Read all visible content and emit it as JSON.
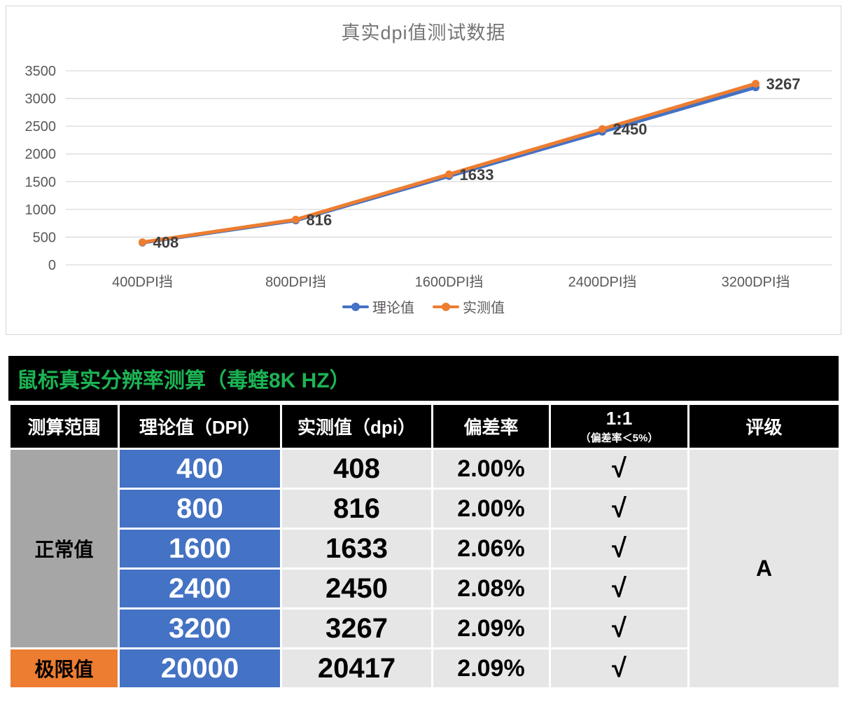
{
  "chart_data": {
    "type": "line",
    "title": "真实dpi值测试数据",
    "categories": [
      "400DPI挡",
      "800DPI挡",
      "1600DPI挡",
      "2400DPI挡",
      "3200DPI挡"
    ],
    "series": [
      {
        "name": "理论值",
        "color": "#4472c4",
        "values": [
          400,
          800,
          1600,
          2400,
          3200
        ]
      },
      {
        "name": "实测值",
        "color": "#ed7d31",
        "values": [
          408,
          816,
          1633,
          2450,
          3267
        ],
        "labels": [
          "408",
          "816",
          "1633",
          "2450",
          "3267"
        ]
      }
    ],
    "ylim": [
      0,
      3500
    ],
    "yticks": [
      0,
      500,
      1000,
      1500,
      2000,
      2500,
      3000,
      3500
    ],
    "grid": true,
    "legend_position": "bottom",
    "gridline_color": "#d9d9d9",
    "tick_color": "#595959",
    "data_label_color": "#3f3f3f"
  },
  "table": {
    "title": "鼠标真实分辨率测算（毒蝰8K HZ）",
    "title_color": "#1cb454",
    "headers": {
      "range": "测算范围",
      "theoretical": "理论值（DPI）",
      "measured": "实测值（dpi）",
      "deviation": "偏差率",
      "ratio_main": "1:1",
      "ratio_sub": "（偏差率＜5%）",
      "grade": "评级"
    },
    "normal_label": "正常值",
    "limit_label": "极限值",
    "grade_value": "A",
    "rows": [
      {
        "theoretical": "400",
        "measured": "408",
        "deviation": "2.00%",
        "pass": "√"
      },
      {
        "theoretical": "800",
        "measured": "816",
        "deviation": "2.00%",
        "pass": "√"
      },
      {
        "theoretical": "1600",
        "measured": "1633",
        "deviation": "2.06%",
        "pass": "√"
      },
      {
        "theoretical": "2400",
        "measured": "2450",
        "deviation": "2.08%",
        "pass": "√"
      },
      {
        "theoretical": "3200",
        "measured": "3267",
        "deviation": "2.09%",
        "pass": "√"
      },
      {
        "theoretical": "20000",
        "measured": "20417",
        "deviation": "2.09%",
        "pass": "√"
      }
    ]
  },
  "colors": {
    "accent_blue": "#4472c4",
    "accent_orange": "#ed7d31",
    "range_gray": "#a6a6a6",
    "light_cell": "#e7e6e6",
    "header_bg": "#000000",
    "title_green": "#1cb454",
    "chart_title_gray": "#757575"
  }
}
